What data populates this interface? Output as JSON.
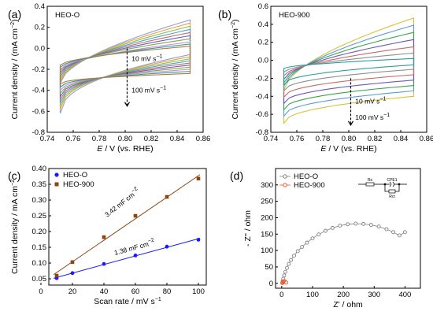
{
  "chart_data": [
    {
      "panel": "(a)",
      "type": "line",
      "title": "HEO-O",
      "xlabel_prefix": "E",
      "xlabel_suffix": " / V (vs. RHE)",
      "ylabel": "Current density / (mA cm",
      "ylabel_sup": "−2",
      "ylabel_end": ")",
      "xlim": [
        0.74,
        0.86
      ],
      "ylim": [
        -0.8,
        0.4
      ],
      "xticks": [
        "0.74",
        "0.76",
        "0.78",
        "0.80",
        "0.82",
        "0.84",
        "0.86"
      ],
      "yticks": [
        "-0.8",
        "-0.6",
        "-0.4",
        "-0.2",
        "0.0",
        "0.2",
        "0.4"
      ],
      "annotations": [
        {
          "base": "10 mV s",
          "sup": "−1"
        },
        {
          "base": "100 mV s",
          "sup": "−1"
        }
      ],
      "cv_loops": {
        "x_range": [
          0.75,
          0.85
        ],
        "upper_start": [
          -0.33,
          -0.31,
          -0.29,
          -0.27,
          -0.25,
          -0.23,
          -0.21,
          -0.2,
          -0.18,
          -0.16
        ],
        "upper_end": [
          0.27,
          0.24,
          0.21,
          0.18,
          0.15,
          0.12,
          0.09,
          0.06,
          0.04,
          0.02
        ],
        "lower_start": [
          -0.62,
          -0.58,
          -0.55,
          -0.52,
          -0.49,
          -0.46,
          -0.43,
          -0.4,
          -0.37,
          -0.34
        ],
        "lower_end": [
          -0.06,
          -0.08,
          -0.1,
          -0.12,
          -0.14,
          -0.16,
          -0.18,
          -0.2,
          -0.22,
          -0.24
        ],
        "colors": [
          "#8f9fd4",
          "#e6a23c",
          "#8fbf4f",
          "#4aa3c9",
          "#c46b6b",
          "#6c5fb8",
          "#7aa84a",
          "#c98fd1",
          "#2d9c9c",
          "#b07b3e"
        ]
      }
    },
    {
      "panel": "(b)",
      "type": "line",
      "title": "HEO-900",
      "xlabel_prefix": "E",
      "xlabel_suffix": " / V (vs. RHE)",
      "ylabel": "Current density / (mA cm",
      "ylabel_sup": "−2",
      "ylabel_end": ")",
      "xlim": [
        0.74,
        0.86
      ],
      "ylim": [
        -0.8,
        0.6
      ],
      "xticks": [
        "0.74",
        "0.76",
        "0.78",
        "0.80",
        "0.82",
        "0.84",
        "0.86"
      ],
      "yticks": [
        "-0.8",
        "-0.6",
        "-0.4",
        "-0.2",
        "0.0",
        "0.2",
        "0.4",
        "0.6"
      ],
      "annotations": [
        {
          "base": "10 mV s",
          "sup": "−1"
        },
        {
          "base": "100 mV s",
          "sup": "−1"
        }
      ],
      "cv_loops": {
        "x_range": [
          0.75,
          0.85
        ],
        "upper_start": [
          -0.33,
          -0.29,
          -0.25,
          -0.21,
          -0.17,
          -0.13,
          -0.09
        ],
        "upper_end": [
          0.47,
          0.39,
          0.31,
          0.23,
          0.15,
          0.08,
          0.02
        ],
        "lower_start": [
          -0.7,
          -0.62,
          -0.55,
          -0.48,
          -0.41,
          -0.34,
          -0.27
        ],
        "lower_end": [
          -0.4,
          -0.34,
          -0.28,
          -0.22,
          -0.16,
          -0.1,
          -0.05
        ],
        "colors": [
          "#d6c23a",
          "#5c9bd6",
          "#3aa54f",
          "#6f57b8",
          "#c46b6b",
          "#8f8f8f",
          "#2d9c9c"
        ]
      }
    },
    {
      "panel": "(c)",
      "type": "scatter",
      "xlabel": "Scan rate / mV s",
      "xlabel_sup": "−1",
      "ylabel": "Current density / mA cm",
      "ylabel_sup": "−2",
      "xlim": [
        5,
        105
      ],
      "ylim": [
        0.03,
        0.4
      ],
      "xticks": [
        "0",
        "20",
        "40",
        "60",
        "80",
        "100"
      ],
      "yticks": [
        "0.05",
        "0.10",
        "0.15",
        "0.20",
        "0.25",
        "0.30",
        "0.35",
        "0.40"
      ],
      "legend_position": "top-left",
      "series": [
        {
          "name": "HEO-O",
          "color": "#1a1aff",
          "marker": "circle",
          "x": [
            10,
            20,
            40,
            60,
            80,
            100
          ],
          "y": [
            0.052,
            0.068,
            0.097,
            0.124,
            0.152,
            0.174
          ],
          "fit_label": "1.38 mF cm",
          "fit_sup": "−2"
        },
        {
          "name": "HEO-900",
          "color": "#8b4513",
          "marker": "square",
          "x": [
            10,
            20,
            40,
            60,
            80,
            100
          ],
          "y": [
            0.06,
            0.103,
            0.182,
            0.25,
            0.31,
            0.368
          ],
          "fit_label": "3.42 mF cm",
          "fit_sup": "−2"
        }
      ]
    },
    {
      "panel": "(d)",
      "type": "scatter",
      "xlabel": "Z' / ohm",
      "ylabel": "- Z'' / ohm",
      "xlim": [
        -20,
        450
      ],
      "ylim": [
        -15,
        350
      ],
      "xticks": [
        "0",
        "100",
        "200",
        "300",
        "400"
      ],
      "yticks": [
        "0",
        "50",
        "100",
        "150",
        "200",
        "250",
        "300"
      ],
      "legend_position": "top-left",
      "series": [
        {
          "name": "HEO-O",
          "color": "#808080",
          "marker": "open-circle",
          "x": [
            2,
            3,
            5,
            8,
            12,
            17,
            23,
            30,
            40,
            52,
            66,
            82,
            100,
            120,
            142,
            165,
            189,
            214,
            240,
            265,
            290,
            315,
            340,
            362,
            382,
            400
          ],
          "y": [
            1,
            6,
            14,
            24,
            35,
            47,
            59,
            71,
            84,
            98,
            111,
            124,
            137,
            149,
            160,
            169,
            176,
            180,
            182,
            181,
            178,
            173,
            165,
            156,
            146,
            156
          ]
        },
        {
          "name": "HEO-900",
          "color": "#e8562a",
          "marker": "open-circle",
          "x": [
            2,
            3,
            5,
            7,
            9,
            11,
            13,
            15
          ],
          "y": [
            1,
            3,
            5,
            6,
            6,
            5,
            3,
            2
          ]
        }
      ],
      "circuit_labels": [
        "Rs",
        "CPE1",
        "Rct"
      ]
    }
  ],
  "panel_labels": [
    "(a)",
    "(b)",
    "(c)",
    "(d)"
  ]
}
